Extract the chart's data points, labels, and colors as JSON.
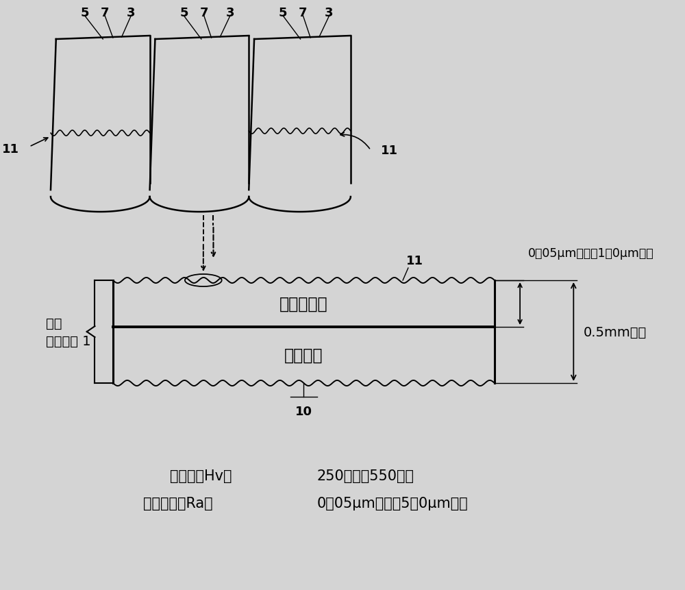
{
  "bg_color": "#d4d4d4",
  "line_color": "#000000",
  "label_top_right": "0．05μm以上而1．0μm以下",
  "label_right_mid": "0.5mm以下",
  "label_film": "着色皮膜层",
  "label_steel": "不锈钙板",
  "label_left1": "着色",
  "label_left2": "不锈钙板 1",
  "label_11": "11",
  "label_10": "10",
  "label_hv": "维氏硬度Hv：",
  "label_hv_val": "250以上而550以下",
  "label_ra": "表面粗糙度Ra：",
  "label_ra_val": "0．05μm以上而5．0μm以下",
  "coil_nums": [
    [
      "5",
      "7",
      "3"
    ],
    [
      "5",
      "7",
      "3"
    ],
    [
      "5",
      "7",
      "3"
    ]
  ]
}
